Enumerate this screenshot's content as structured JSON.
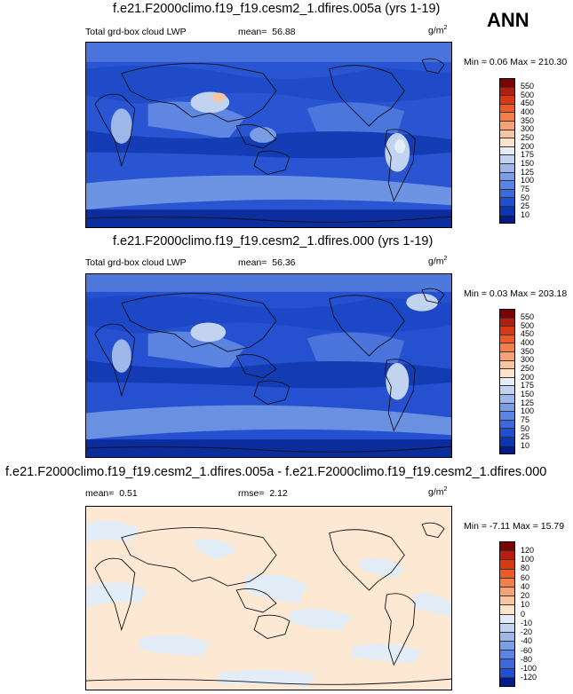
{
  "season": "ANN",
  "panels": [
    {
      "title": "f.e21.F2000climo.f19_f19.cesm2_1.dfires.005a (yrs 1-19)",
      "left_label": "Total grd-box cloud LWP",
      "stat1_label": "mean=",
      "stat1_value": "56.88",
      "stat2_label": "",
      "stat2_value": "",
      "unit": "g/m",
      "unit_sup": "2",
      "minmax": "Min =   0.06 Max = 210.30",
      "colorbar_labels": [
        "550",
        "500",
        "450",
        "400",
        "350",
        "300",
        "250",
        "200",
        "175",
        "150",
        "125",
        "100",
        "75",
        "50",
        "25",
        "10"
      ],
      "colorbar_colors": [
        "#7a0403",
        "#b71d0c",
        "#d73a13",
        "#ea5b25",
        "#f37f48",
        "#f6a276",
        "#f9c4a0",
        "#fde3c9",
        "#e3edf8",
        "#c1d3ee",
        "#9cb7e8",
        "#7a9ee6",
        "#5a84e5",
        "#3c69dc",
        "#2050cf",
        "#0d36b4",
        "#001c8a"
      ]
    },
    {
      "title": "f.e21.F2000climo.f19_f19.cesm2_1.dfires.000 (yrs 1-19)",
      "left_label": "Total grd-box cloud LWP",
      "stat1_label": "mean=",
      "stat1_value": "56.36",
      "stat2_label": "",
      "stat2_value": "",
      "unit": "g/m",
      "unit_sup": "2",
      "minmax": "Min =   0.03 Max = 203.18",
      "colorbar_labels": [
        "550",
        "500",
        "450",
        "400",
        "350",
        "300",
        "250",
        "200",
        "175",
        "150",
        "125",
        "100",
        "75",
        "50",
        "25",
        "10"
      ],
      "colorbar_colors": [
        "#7a0403",
        "#b71d0c",
        "#d73a13",
        "#ea5b25",
        "#f37f48",
        "#f6a276",
        "#f9c4a0",
        "#fde3c9",
        "#e3edf8",
        "#c1d3ee",
        "#9cb7e8",
        "#7a9ee6",
        "#5a84e5",
        "#3c69dc",
        "#2050cf",
        "#0d36b4",
        "#001c8a"
      ]
    },
    {
      "title": "f.e21.F2000climo.f19_f19.cesm2_1.dfires.005a - f.e21.F2000climo.f19_f19.cesm2_1.dfires.000",
      "left_label": "",
      "stat1_label": "mean=",
      "stat1_value": "0.51",
      "stat2_label": "rmse=",
      "stat2_value": "2.12",
      "unit": "g/m",
      "unit_sup": "2",
      "minmax": "Min =  -7.11 Max =  15.79",
      "colorbar_labels": [
        "120",
        "100",
        "80",
        "60",
        "40",
        "20",
        "10",
        "0",
        "-10",
        "-20",
        "-40",
        "-60",
        "-80",
        "-100",
        "-120"
      ],
      "colorbar_colors": [
        "#7a0403",
        "#b71d0c",
        "#d73a13",
        "#ea5b25",
        "#f37f48",
        "#f6a276",
        "#f9c4a0",
        "#fde3c9",
        "#e3edf8",
        "#c1d3ee",
        "#9cb7e8",
        "#7a9ee6",
        "#5a84e5",
        "#3c69dc",
        "#2050cf",
        "#001c8a"
      ]
    }
  ]
}
